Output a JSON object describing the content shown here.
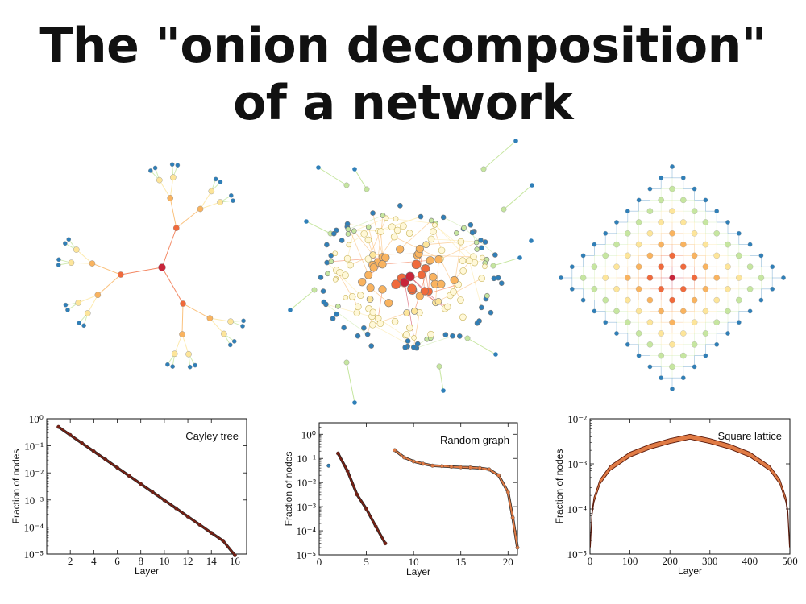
{
  "page": {
    "title_line_1": "The \"onion decomposition\"",
    "title_line_2": "of a network"
  },
  "colors": {
    "core": "#c8253a",
    "inner": "#f06a3c",
    "middle": "#f9b35f",
    "mid_light": "#fde59a",
    "outer": "#c6e6a0",
    "periphery": "#2f7fb8",
    "line_dark": "#7a1f12",
    "line_orange": "#e07b45"
  },
  "networks": [
    {
      "name": "cayley-tree"
    },
    {
      "name": "random-graph"
    },
    {
      "name": "square-lattice"
    }
  ],
  "chart_data": [
    {
      "type": "line",
      "title": "Cayley tree",
      "xlabel": "Layer",
      "ylabel": "Fraction of nodes",
      "yscale": "log",
      "xlim": [
        0,
        17
      ],
      "ylim": [
        1e-05,
        1
      ],
      "xticks": [
        2,
        4,
        6,
        8,
        10,
        12,
        14,
        16
      ],
      "yticks": [
        1,
        0.1,
        0.01,
        0.001,
        0.0001,
        1e-05
      ],
      "ytick_labels": [
        "10^0",
        "10^-1",
        "10^-2",
        "10^-3",
        "10^-4",
        "10^-5"
      ],
      "series": [
        {
          "x": [
            1,
            2,
            3,
            4,
            5,
            6,
            7,
            8,
            9,
            10,
            11,
            12,
            13,
            14,
            15,
            16
          ],
          "y": [
            0.5,
            0.25,
            0.125,
            0.0625,
            0.03125,
            0.0156,
            0.0078,
            0.0039,
            0.00195,
            0.00098,
            0.00049,
            0.000244,
            0.000122,
            6.1e-05,
            3.1e-05,
            9e-06
          ],
          "color": "#7a1f12",
          "style": "line+markers"
        }
      ],
      "legend": "top-right"
    },
    {
      "type": "line",
      "title": "Random graph",
      "xlabel": "Layer",
      "ylabel": "Fraction of nodes",
      "yscale": "log",
      "xlim": [
        0,
        21
      ],
      "ylim": [
        1e-05,
        3
      ],
      "xticks": [
        0,
        5,
        10,
        15,
        20
      ],
      "yticks": [
        1,
        0.1,
        0.01,
        0.001,
        0.0001,
        1e-05
      ],
      "ytick_labels": [
        "10^0",
        "10^-1",
        "10^-2",
        "10^-3",
        "10^-4",
        "10^-5"
      ],
      "series": [
        {
          "x": [
            1
          ],
          "y": [
            0.05
          ],
          "color": "#2f7fb8",
          "style": "markers"
        },
        {
          "x": [
            2,
            3,
            4,
            5,
            6,
            7
          ],
          "y": [
            0.16,
            0.03,
            0.0032,
            0.0008,
            0.00015,
            3e-05
          ],
          "color": "#7a1f12",
          "style": "line+markers"
        },
        {
          "x": [
            8,
            9,
            10,
            11,
            12,
            13,
            14,
            15,
            16,
            17,
            18,
            19,
            20,
            20.5,
            21
          ],
          "y": [
            0.22,
            0.11,
            0.075,
            0.06,
            0.05,
            0.048,
            0.045,
            0.043,
            0.042,
            0.04,
            0.035,
            0.02,
            0.004,
            0.00035,
            2e-05
          ],
          "color": "#e07b45",
          "style": "line+markers"
        }
      ],
      "legend": "top-right"
    },
    {
      "type": "area",
      "title": "Square lattice",
      "xlabel": "Layer",
      "ylabel": "Fraction of nodes",
      "yscale": "log",
      "xlim": [
        0,
        500
      ],
      "ylim": [
        1e-05,
        0.01
      ],
      "xticks": [
        0,
        100,
        200,
        300,
        400,
        500
      ],
      "yticks": [
        0.01,
        0.001,
        0.0001,
        1e-05
      ],
      "ytick_labels": [
        "10^-2",
        "10^-3",
        "10^-4",
        "10^-5"
      ],
      "series": [
        {
          "x": [
            1,
            5,
            10,
            25,
            50,
            100,
            150,
            200,
            250,
            300,
            350,
            400,
            450,
            475,
            490,
            495,
            499
          ],
          "y": [
            1.6e-05,
            8e-05,
            0.00016,
            0.0004,
            0.0008,
            0.0016,
            0.0024,
            0.0032,
            0.004,
            0.0032,
            0.0024,
            0.0016,
            0.0008,
            0.0004,
            0.00016,
            8e-05,
            1.6e-05
          ],
          "color": "#e07b45",
          "style": "band"
        }
      ],
      "legend": "top-right"
    }
  ]
}
